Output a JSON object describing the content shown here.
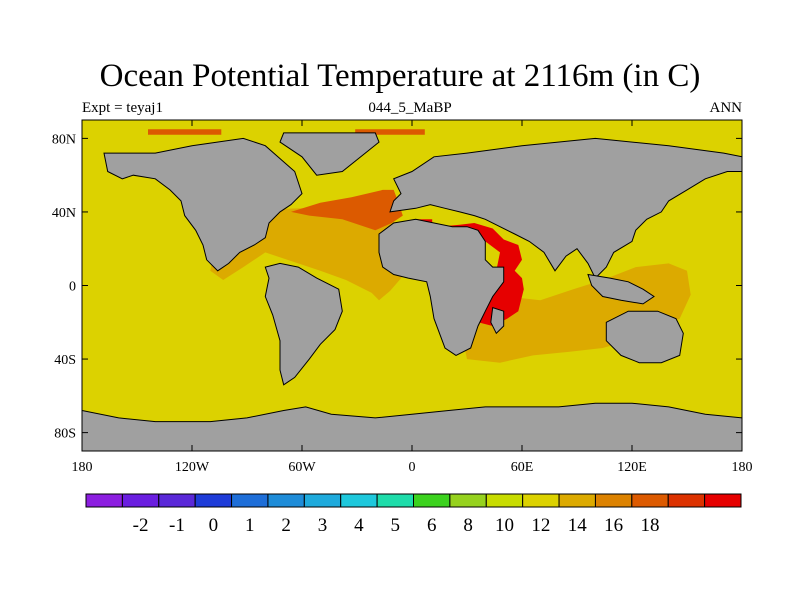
{
  "title": "Ocean Potential Temperature at 2116m (in C)",
  "subtitle_left": "Expt = teyaj1",
  "subtitle_center": "044_5_MaBP",
  "subtitle_right": "ANN",
  "map": {
    "projection": "cylindrical-equidistant",
    "lon_range": [
      -180,
      180
    ],
    "lat_range": [
      -90,
      90
    ],
    "land_color": "#a0a0a0",
    "x_ticks": [
      {
        "lon": -180,
        "label": "180"
      },
      {
        "lon": -120,
        "label": "120W"
      },
      {
        "lon": -60,
        "label": "60W"
      },
      {
        "lon": 0,
        "label": "0"
      },
      {
        "lon": 60,
        "label": "60E"
      },
      {
        "lon": 120,
        "label": "120E"
      },
      {
        "lon": 180,
        "label": "180"
      }
    ],
    "y_ticks": [
      {
        "lat": 80,
        "label": "80N"
      },
      {
        "lat": 40,
        "label": "40N"
      },
      {
        "lat": 0,
        "label": "0"
      },
      {
        "lat": -40,
        "label": "40S"
      },
      {
        "lat": -80,
        "label": "80S"
      }
    ]
  },
  "colorbar": {
    "colors": [
      "#8c1ee0",
      "#6a1ee0",
      "#5a28d8",
      "#1e3cd8",
      "#1e6ed8",
      "#1e8cd8",
      "#1eaadc",
      "#1ec8dc",
      "#1edcaa",
      "#3cd21e",
      "#96d21e",
      "#c8dc00",
      "#dcd200",
      "#dcaa00",
      "#dc8200",
      "#dc5a00",
      "#dc3200",
      "#e60000"
    ],
    "labels": [
      "-2",
      "-1",
      "0",
      "1",
      "2",
      "3",
      "4",
      "5",
      "6",
      "8",
      "10",
      "12",
      "14",
      "16",
      "18"
    ]
  },
  "fields": [
    {
      "name": "ocean-background",
      "color": "#dcd200",
      "level": "10-12",
      "polygon": [
        [
          -180,
          90
        ],
        [
          180,
          90
        ],
        [
          180,
          -90
        ],
        [
          -180,
          -90
        ]
      ]
    },
    {
      "name": "arctic-warm-patch",
      "color": "#dc5a00",
      "level": "14-16",
      "polygon": [
        [
          -144,
          85
        ],
        [
          -104,
          85
        ],
        [
          -104,
          82
        ],
        [
          -144,
          82
        ]
      ]
    },
    {
      "name": "arctic-warm-patch-east",
      "color": "#dc5a00",
      "level": "14-16",
      "polygon": [
        [
          -31,
          85
        ],
        [
          7,
          85
        ],
        [
          7,
          82
        ],
        [
          -31,
          82
        ]
      ]
    },
    {
      "name": "atlantic-14-band",
      "color": "#dcaa00",
      "level": "12-14",
      "polygon": [
        [
          -93,
          41
        ],
        [
          -60,
          42
        ],
        [
          -20,
          36
        ],
        [
          0,
          33
        ],
        [
          0,
          20
        ],
        [
          -5,
          5
        ],
        [
          -12,
          -3
        ],
        [
          -18,
          -8
        ],
        [
          -22,
          -4
        ],
        [
          -36,
          3
        ],
        [
          -50,
          8
        ],
        [
          -68,
          14
        ],
        [
          -80,
          18
        ],
        [
          -92,
          10
        ],
        [
          -103,
          3
        ],
        [
          -110,
          8
        ],
        [
          -109,
          14
        ],
        [
          -104,
          18
        ],
        [
          -96,
          30
        ]
      ]
    },
    {
      "name": "atlantic-north-warm",
      "color": "#dc5a00",
      "level": "14-16",
      "polygon": [
        [
          -66,
          40
        ],
        [
          -50,
          45
        ],
        [
          -33,
          48
        ],
        [
          -16,
          52
        ],
        [
          -10,
          52
        ],
        [
          -7,
          44
        ],
        [
          -5,
          38
        ],
        [
          -11,
          34
        ],
        [
          -20,
          30
        ],
        [
          -38,
          36
        ],
        [
          -56,
          38
        ]
      ]
    },
    {
      "name": "indian-14-band",
      "color": "#dcaa00",
      "level": "12-14",
      "polygon": [
        [
          40,
          2
        ],
        [
          52,
          -6
        ],
        [
          70,
          -8
        ],
        [
          88,
          -2
        ],
        [
          104,
          3
        ],
        [
          122,
          10
        ],
        [
          140,
          12
        ],
        [
          150,
          8
        ],
        [
          152,
          -5
        ],
        [
          146,
          -18
        ],
        [
          132,
          -25
        ],
        [
          118,
          -30
        ],
        [
          104,
          -34
        ],
        [
          86,
          -36
        ],
        [
          66,
          -38
        ],
        [
          48,
          -42
        ],
        [
          30,
          -40
        ],
        [
          28,
          -30
        ],
        [
          32,
          -20
        ],
        [
          38,
          -8
        ]
      ]
    },
    {
      "name": "tethys-warm",
      "color": "#e60000",
      "level": "16-18",
      "polygon": [
        [
          2,
          30
        ],
        [
          14,
          32
        ],
        [
          26,
          33
        ],
        [
          34,
          34
        ],
        [
          44,
          31
        ],
        [
          50,
          25
        ],
        [
          58,
          22
        ],
        [
          60,
          14
        ],
        [
          56,
          8
        ],
        [
          60,
          4
        ],
        [
          61,
          -2
        ],
        [
          58,
          -14
        ],
        [
          52,
          -18
        ],
        [
          44,
          -22
        ],
        [
          36,
          -20
        ],
        [
          34,
          -12
        ],
        [
          38,
          -2
        ],
        [
          46,
          8
        ],
        [
          48,
          18
        ],
        [
          40,
          24
        ],
        [
          28,
          25
        ],
        [
          18,
          25
        ],
        [
          8,
          26
        ]
      ]
    },
    {
      "name": "tethys-med-red",
      "color": "#e60000",
      "level": "16-18",
      "polygon": [
        [
          3,
          36
        ],
        [
          11,
          36
        ],
        [
          11,
          34
        ],
        [
          3,
          34
        ]
      ]
    }
  ],
  "land": [
    {
      "name": "greenland",
      "polygon": [
        [
          -70,
          83
        ],
        [
          -20,
          83
        ],
        [
          -18,
          78
        ],
        [
          -38,
          62
        ],
        [
          -52,
          60
        ],
        [
          -60,
          70
        ],
        [
          -72,
          78
        ]
      ]
    },
    {
      "name": "north-america",
      "polygon": [
        [
          -168,
          72
        ],
        [
          -140,
          72
        ],
        [
          -120,
          76
        ],
        [
          -92,
          80
        ],
        [
          -80,
          76
        ],
        [
          -64,
          62
        ],
        [
          -60,
          50
        ],
        [
          -66,
          44
        ],
        [
          -72,
          40
        ],
        [
          -78,
          34
        ],
        [
          -80,
          26
        ],
        [
          -86,
          22
        ],
        [
          -94,
          18
        ],
        [
          -100,
          12
        ],
        [
          -106,
          8
        ],
        [
          -112,
          14
        ],
        [
          -114,
          22
        ],
        [
          -118,
          30
        ],
        [
          -124,
          38
        ],
        [
          -126,
          46
        ],
        [
          -132,
          52
        ],
        [
          -140,
          58
        ],
        [
          -152,
          60
        ],
        [
          -158,
          58
        ],
        [
          -166,
          62
        ]
      ]
    },
    {
      "name": "south-america",
      "polygon": [
        [
          -80,
          10
        ],
        [
          -72,
          12
        ],
        [
          -62,
          10
        ],
        [
          -52,
          4
        ],
        [
          -40,
          -2
        ],
        [
          -38,
          -14
        ],
        [
          -42,
          -24
        ],
        [
          -50,
          -32
        ],
        [
          -56,
          -40
        ],
        [
          -64,
          -50
        ],
        [
          -70,
          -54
        ],
        [
          -72,
          -46
        ],
        [
          -72,
          -30
        ],
        [
          -76,
          -16
        ],
        [
          -80,
          -6
        ],
        [
          -78,
          4
        ]
      ]
    },
    {
      "name": "africa",
      "polygon": [
        [
          -18,
          28
        ],
        [
          -10,
          34
        ],
        [
          2,
          36
        ],
        [
          12,
          34
        ],
        [
          22,
          32
        ],
        [
          30,
          32
        ],
        [
          36,
          30
        ],
        [
          40,
          24
        ],
        [
          40,
          14
        ],
        [
          44,
          10
        ],
        [
          50,
          10
        ],
        [
          50,
          2
        ],
        [
          44,
          -6
        ],
        [
          40,
          -14
        ],
        [
          36,
          -22
        ],
        [
          32,
          -34
        ],
        [
          24,
          -38
        ],
        [
          18,
          -34
        ],
        [
          12,
          -18
        ],
        [
          10,
          -6
        ],
        [
          8,
          2
        ],
        [
          -2,
          4
        ],
        [
          -10,
          6
        ],
        [
          -16,
          10
        ],
        [
          -18,
          18
        ]
      ]
    },
    {
      "name": "eurasia",
      "polygon": [
        [
          -12,
          40
        ],
        [
          -10,
          46
        ],
        [
          -6,
          50
        ],
        [
          -10,
          58
        ],
        [
          0,
          62
        ],
        [
          12,
          70
        ],
        [
          30,
          72
        ],
        [
          60,
          76
        ],
        [
          100,
          80
        ],
        [
          140,
          76
        ],
        [
          170,
          72
        ],
        [
          180,
          70
        ],
        [
          180,
          62
        ],
        [
          172,
          62
        ],
        [
          160,
          58
        ],
        [
          150,
          52
        ],
        [
          140,
          46
        ],
        [
          136,
          40
        ],
        [
          128,
          36
        ],
        [
          122,
          30
        ],
        [
          120,
          24
        ],
        [
          110,
          18
        ],
        [
          106,
          10
        ],
        [
          100,
          4
        ],
        [
          96,
          12
        ],
        [
          90,
          20
        ],
        [
          84,
          16
        ],
        [
          78,
          8
        ],
        [
          72,
          18
        ],
        [
          64,
          24
        ],
        [
          56,
          28
        ],
        [
          48,
          32
        ],
        [
          40,
          36
        ],
        [
          34,
          38
        ],
        [
          26,
          40
        ],
        [
          18,
          42
        ],
        [
          10,
          44
        ],
        [
          2,
          42
        ]
      ]
    },
    {
      "name": "southeast-asia",
      "polygon": [
        [
          96,
          6
        ],
        [
          108,
          4
        ],
        [
          118,
          2
        ],
        [
          126,
          -2
        ],
        [
          132,
          -6
        ],
        [
          126,
          -10
        ],
        [
          114,
          -8
        ],
        [
          104,
          -6
        ],
        [
          98,
          0
        ]
      ]
    },
    {
      "name": "australia",
      "polygon": [
        [
          106,
          -20
        ],
        [
          118,
          -14
        ],
        [
          134,
          -14
        ],
        [
          144,
          -18
        ],
        [
          148,
          -26
        ],
        [
          146,
          -38
        ],
        [
          136,
          -42
        ],
        [
          124,
          -42
        ],
        [
          114,
          -38
        ],
        [
          106,
          -30
        ]
      ]
    },
    {
      "name": "antarctica",
      "polygon": [
        [
          -180,
          -68
        ],
        [
          -160,
          -72
        ],
        [
          -140,
          -74
        ],
        [
          -110,
          -74
        ],
        [
          -90,
          -72
        ],
        [
          -70,
          -68
        ],
        [
          -58,
          -66
        ],
        [
          -44,
          -70
        ],
        [
          -20,
          -72
        ],
        [
          0,
          -70
        ],
        [
          20,
          -68
        ],
        [
          40,
          -66
        ],
        [
          60,
          -66
        ],
        [
          80,
          -66
        ],
        [
          100,
          -64
        ],
        [
          120,
          -64
        ],
        [
          140,
          -66
        ],
        [
          160,
          -70
        ],
        [
          180,
          -72
        ],
        [
          180,
          -90
        ],
        [
          -180,
          -90
        ]
      ]
    },
    {
      "name": "madagascar",
      "polygon": [
        [
          44,
          -12
        ],
        [
          50,
          -14
        ],
        [
          50,
          -22
        ],
        [
          46,
          -26
        ],
        [
          43,
          -20
        ]
      ]
    }
  ]
}
